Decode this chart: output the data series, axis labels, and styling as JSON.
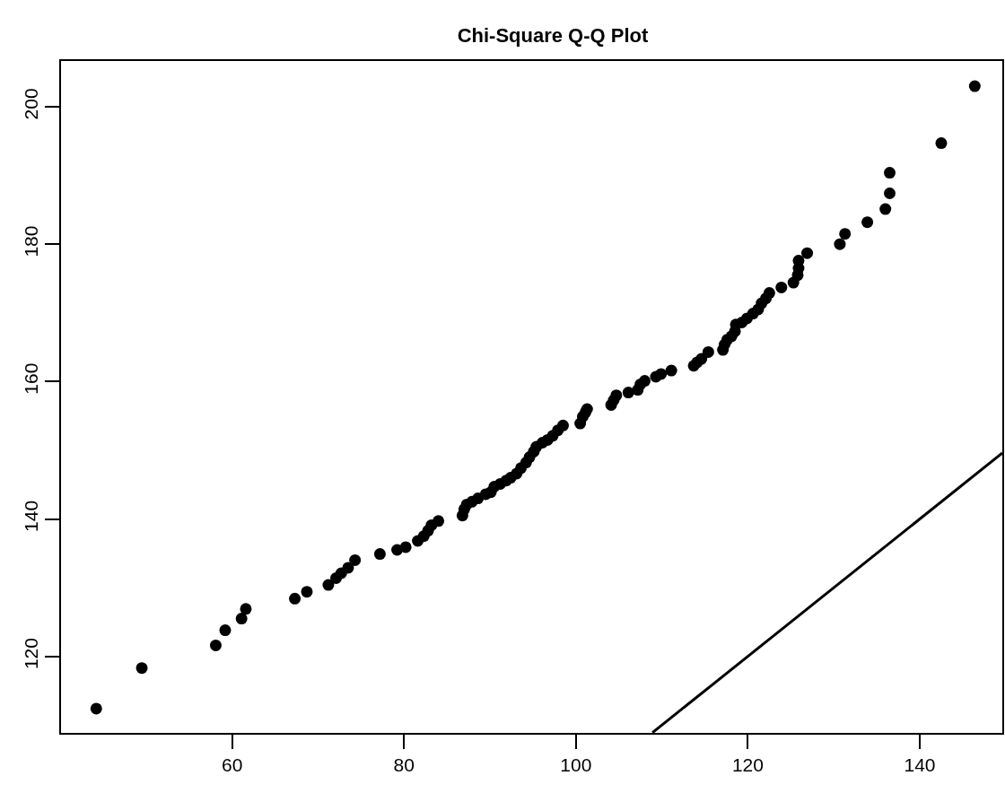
{
  "chart_data": {
    "type": "scatter",
    "title": "Chi-Square Q-Q Plot",
    "xlim": [
      40.1,
      149.6
    ],
    "ylim": [
      108.86,
      206.66
    ],
    "xticks": [
      60,
      80,
      100,
      120,
      140
    ],
    "yticks": [
      120,
      140,
      160,
      180,
      200
    ],
    "series": [
      {
        "color": "#000000",
        "marker": "circle",
        "x": [
          44.2,
          49.5,
          58.1,
          59.2,
          61.1,
          61.6,
          67.3,
          68.7,
          71.2,
          72.1,
          72.7,
          73.5,
          74.3,
          77.2,
          79.2,
          80.2,
          81.6,
          82.3,
          82.8,
          83.2,
          84.0,
          86.8,
          87.0,
          87.3,
          87.9,
          88.6,
          89.5,
          90.1,
          90.5,
          91.2,
          91.9,
          92.4,
          93.1,
          93.6,
          94.2,
          94.6,
          95.1,
          95.4,
          96.1,
          96.7,
          97.3,
          97.9,
          98.5,
          100.5,
          100.8,
          101.1,
          101.3,
          104.1,
          104.4,
          104.7,
          106.1,
          107.2,
          107.5,
          108.0,
          109.3,
          109.9,
          111.1,
          113.7,
          114.1,
          114.6,
          115.4,
          117.1,
          117.3,
          117.6,
          118.1,
          118.5,
          118.6,
          119.3,
          119.9,
          120.6,
          121.2,
          121.6,
          122.1,
          122.5,
          123.9,
          125.3,
          125.8,
          125.9,
          125.9,
          126.9,
          130.7,
          131.3,
          133.9,
          136.0,
          136.5,
          136.5,
          142.5,
          146.4
        ],
        "values": [
          112.4,
          118.3,
          121.6,
          123.8,
          125.5,
          126.9,
          128.4,
          129.4,
          130.4,
          131.4,
          132.1,
          132.9,
          134.0,
          134.9,
          135.5,
          135.9,
          136.8,
          137.5,
          138.3,
          139.1,
          139.7,
          140.5,
          141.4,
          142.1,
          142.5,
          143.0,
          143.6,
          143.9,
          144.7,
          145.1,
          145.6,
          146.0,
          146.6,
          147.4,
          148.2,
          149.0,
          149.8,
          150.5,
          151.1,
          151.5,
          152.1,
          152.9,
          153.6,
          153.9,
          154.9,
          155.5,
          156.0,
          156.6,
          157.3,
          158.0,
          158.4,
          158.8,
          159.6,
          160.1,
          160.7,
          161.1,
          161.6,
          162.3,
          162.8,
          163.3,
          164.3,
          164.6,
          165.4,
          166.1,
          166.6,
          167.3,
          168.3,
          168.6,
          169.2,
          169.9,
          170.5,
          171.4,
          172.1,
          172.9,
          173.7,
          174.4,
          175.5,
          176.5,
          177.6,
          178.7,
          180.0,
          181.5,
          183.2,
          185.1,
          187.4,
          190.4,
          194.7,
          203.0
        ]
      },
      {
        "type": "line",
        "color": "#000000",
        "line_style": "solid",
        "marker": "none",
        "x": [
          108.9,
          149.6
        ],
        "values": [
          108.9,
          149.6
        ]
      }
    ]
  }
}
